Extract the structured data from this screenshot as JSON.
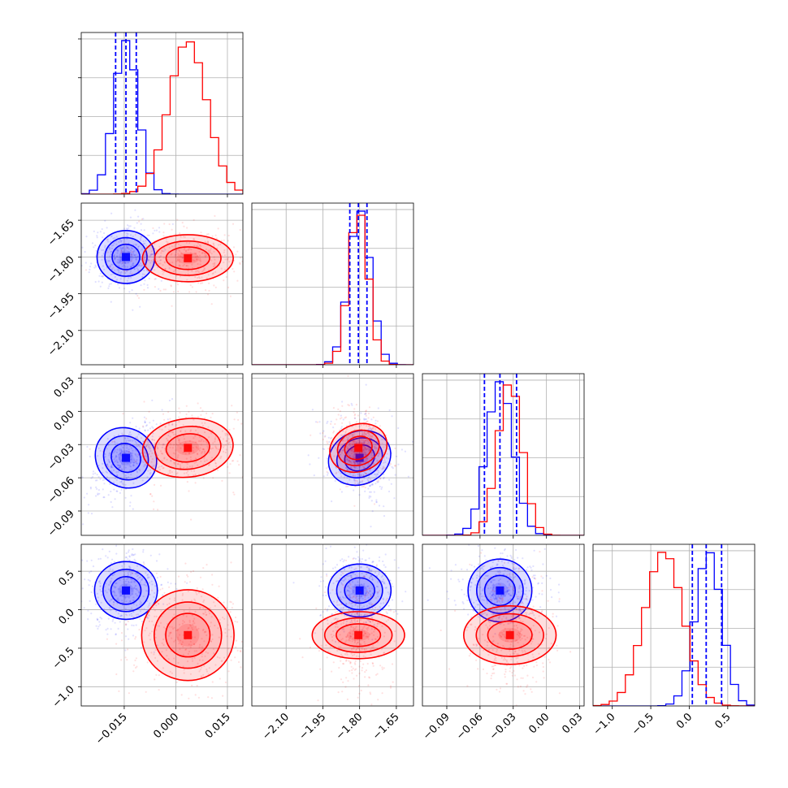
{
  "chart_data": {
    "type": "corner",
    "title": "",
    "grid": true,
    "colors": {
      "series_a": "#0000ff",
      "series_b": "#ff0000"
    },
    "parameters": [
      {
        "range": [
          -0.0275,
          0.0195
        ],
        "ticks": [
          -0.015,
          0.0,
          0.015
        ],
        "tick_labels": [
          "−0.015",
          "0.000",
          "0.015"
        ]
      },
      {
        "range": [
          -2.24,
          -1.58
        ],
        "ticks": [
          -2.1,
          -1.95,
          -1.8,
          -1.65
        ],
        "tick_labels": [
          "−2.10",
          "−1.95",
          "−1.80",
          "−1.65"
        ]
      },
      {
        "range": [
          -0.112,
          0.034
        ],
        "ticks": [
          -0.09,
          -0.06,
          -0.03,
          0.0,
          0.03
        ],
        "tick_labels": [
          "−0.09",
          "−0.06",
          "−0.03",
          "0.00",
          "0.03"
        ]
      },
      {
        "range": [
          -1.25,
          0.85
        ],
        "ticks": [
          -1.0,
          -0.5,
          0.0,
          0.5
        ],
        "tick_labels": [
          "−1.0",
          "−0.5",
          "0.0",
          "0.5"
        ]
      }
    ],
    "series": [
      {
        "color": "#0000ff",
        "means": [
          -0.0145,
          -1.8,
          -0.042,
          0.25
        ],
        "sds": [
          0.0035,
          0.045,
          0.012,
          0.17
        ],
        "quantiles": [
          [
            -0.0175,
            -0.0145,
            -0.0115
          ],
          [
            -1.84,
            -1.805,
            -1.77
          ],
          [
            -0.056,
            -0.042,
            -0.027
          ],
          [
            0.04,
            0.22,
            0.42
          ]
        ],
        "correlations": {
          "0-2": 0.6,
          "1-2": -0.2
        }
      },
      {
        "color": "#ff0000",
        "means": [
          0.0035,
          -1.805,
          -0.033,
          -0.33
        ],
        "sds": [
          0.0055,
          0.04,
          0.011,
          0.25
        ],
        "correlations": {
          "0-2": 0.1,
          "1-2": -0.2
        }
      }
    ]
  }
}
